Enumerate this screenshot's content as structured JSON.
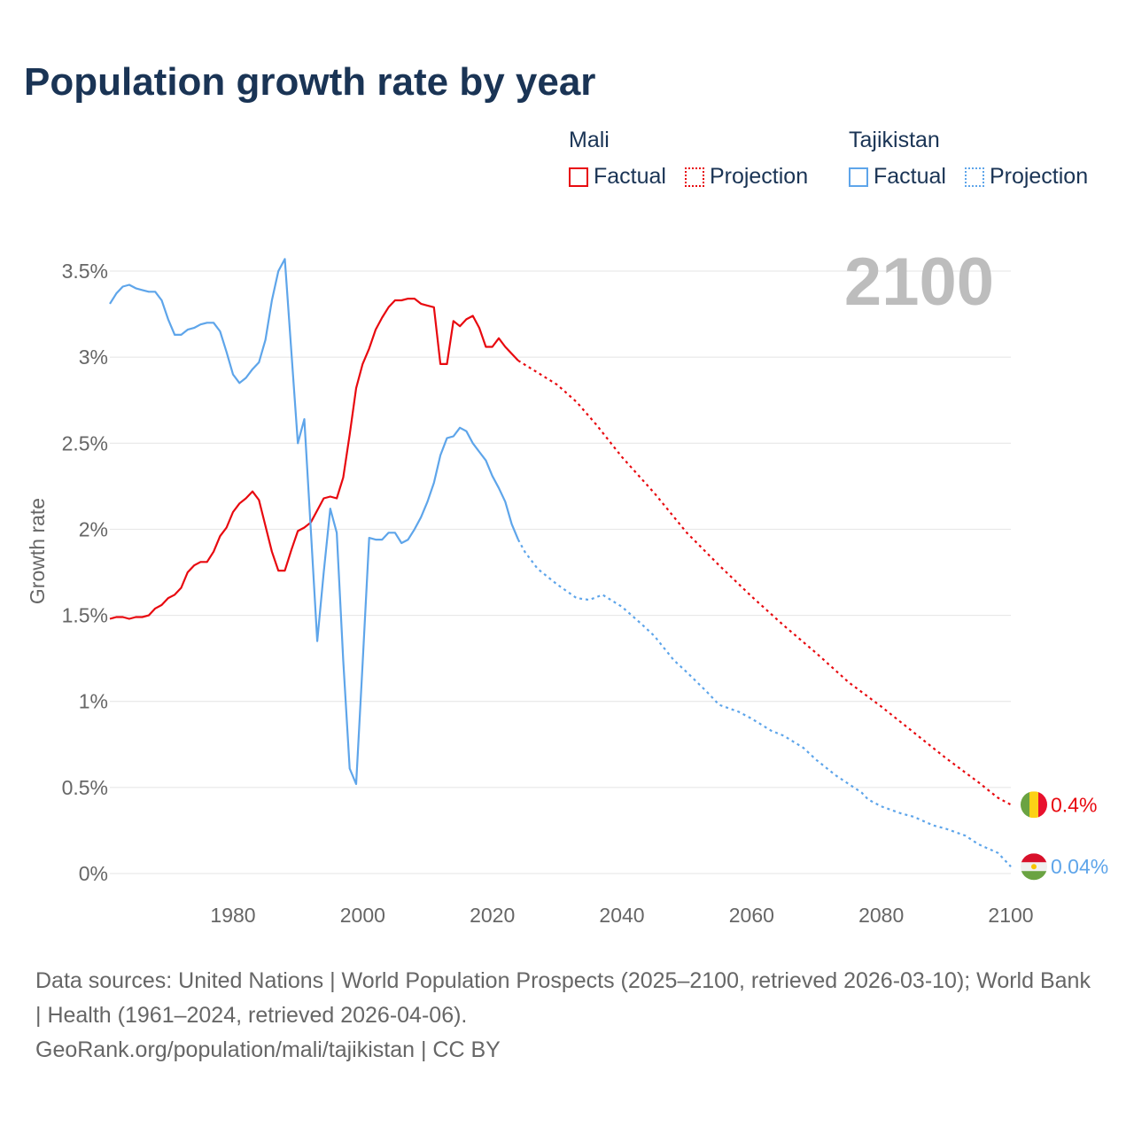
{
  "title": "Population growth rate by year",
  "current_year": "2100",
  "legend": {
    "groups": [
      {
        "name": "Mali",
        "color": "#e8090f",
        "factual": "Factual",
        "projection": "Projection"
      },
      {
        "name": "Tajikistan",
        "color": "#5ea5ea",
        "factual": "Factual",
        "projection": "Projection"
      }
    ]
  },
  "end_labels": {
    "mali": "0.4%",
    "tajikistan": "0.04%"
  },
  "footer": {
    "sources": "Data sources: United Nations | World Population Prospects (2025–2100, retrieved 2026-03-10); World Bank | Health (1961–2024, retrieved 2026-04-06).",
    "credit": "GeoRank.org/population/mali/tajikistan | CC BY"
  },
  "chart_data": {
    "type": "line",
    "title": "Population growth rate by year",
    "xlabel": "",
    "ylabel": "Growth rate",
    "xlim": [
      1961,
      2100
    ],
    "ylim": [
      0,
      3.5
    ],
    "x_ticks": [
      1980,
      2000,
      2020,
      2040,
      2060,
      2080,
      2100
    ],
    "x_tick_labels": [
      "1980",
      "2000",
      "2020",
      "2040",
      "2060",
      "2080",
      "2100"
    ],
    "y_ticks": [
      0,
      0.5,
      1,
      1.5,
      2,
      2.5,
      3,
      3.5
    ],
    "y_tick_labels": [
      "0%",
      "0.5%",
      "1%",
      "1.5%",
      "2%",
      "2.5%",
      "3%",
      "3.5%"
    ],
    "grid": true,
    "legend_position": "top-right",
    "series": [
      {
        "name": "Mali Factual",
        "style": "solid",
        "color": "#e8090f",
        "x": [
          1961,
          1962,
          1963,
          1964,
          1965,
          1966,
          1967,
          1968,
          1969,
          1970,
          1971,
          1972,
          1973,
          1974,
          1975,
          1976,
          1977,
          1978,
          1979,
          1980,
          1981,
          1982,
          1983,
          1984,
          1985,
          1986,
          1987,
          1988,
          1989,
          1990,
          1991,
          1992,
          1993,
          1994,
          1995,
          1996,
          1997,
          1998,
          1999,
          2000,
          2001,
          2002,
          2003,
          2004,
          2005,
          2006,
          2007,
          2008,
          2009,
          2010,
          2011,
          2012,
          2013,
          2014,
          2015,
          2016,
          2017,
          2018,
          2019,
          2020,
          2021,
          2022,
          2023,
          2024
        ],
        "y": [
          1.48,
          1.49,
          1.49,
          1.48,
          1.49,
          1.49,
          1.5,
          1.54,
          1.56,
          1.6,
          1.62,
          1.66,
          1.75,
          1.79,
          1.81,
          1.81,
          1.87,
          1.96,
          2.01,
          2.1,
          2.15,
          2.18,
          2.22,
          2.17,
          2.02,
          1.87,
          1.76,
          1.76,
          1.88,
          1.99,
          2.01,
          2.04,
          2.11,
          2.18,
          2.19,
          2.18,
          2.3,
          2.55,
          2.82,
          2.96,
          3.05,
          3.16,
          3.23,
          3.29,
          3.33,
          3.33,
          3.34,
          3.34,
          3.31,
          3.3,
          3.29,
          2.96,
          2.96,
          3.21,
          3.18,
          3.22,
          3.24,
          3.17,
          3.06,
          3.06,
          3.11,
          3.06,
          3.02,
          2.98
        ]
      },
      {
        "name": "Mali Projection",
        "style": "dotted",
        "color": "#e8090f",
        "x": [
          2024,
          2027,
          2030,
          2033,
          2036,
          2040,
          2045,
          2050,
          2055,
          2060,
          2065,
          2070,
          2075,
          2080,
          2085,
          2090,
          2095,
          2098,
          2100
        ],
        "y": [
          2.98,
          2.91,
          2.84,
          2.74,
          2.61,
          2.42,
          2.21,
          1.98,
          1.79,
          1.61,
          1.44,
          1.28,
          1.11,
          0.97,
          0.82,
          0.67,
          0.53,
          0.44,
          0.4
        ]
      },
      {
        "name": "Tajikistan Factual",
        "style": "solid",
        "color": "#5ea5ea",
        "x": [
          1961,
          1962,
          1963,
          1964,
          1965,
          1966,
          1967,
          1968,
          1969,
          1970,
          1971,
          1972,
          1973,
          1974,
          1975,
          1976,
          1977,
          1978,
          1979,
          1980,
          1981,
          1982,
          1983,
          1984,
          1985,
          1986,
          1987,
          1988,
          1989,
          1990,
          1991,
          1992,
          1993,
          1994,
          1995,
          1996,
          1997,
          1998,
          1999,
          2000,
          2001,
          2002,
          2003,
          2004,
          2005,
          2006,
          2007,
          2008,
          2009,
          2010,
          2011,
          2012,
          2013,
          2014,
          2015,
          2016,
          2017,
          2018,
          2019,
          2020,
          2021,
          2022,
          2023,
          2024
        ],
        "y": [
          3.31,
          3.37,
          3.41,
          3.42,
          3.4,
          3.39,
          3.38,
          3.38,
          3.33,
          3.22,
          3.13,
          3.13,
          3.16,
          3.17,
          3.19,
          3.2,
          3.2,
          3.15,
          3.03,
          2.9,
          2.85,
          2.88,
          2.93,
          2.97,
          3.1,
          3.33,
          3.5,
          3.57,
          3.03,
          2.5,
          2.64,
          2.0,
          1.35,
          1.75,
          2.12,
          1.98,
          1.24,
          0.61,
          0.52,
          1.22,
          1.95,
          1.94,
          1.94,
          1.98,
          1.98,
          1.92,
          1.94,
          2.0,
          2.07,
          2.16,
          2.27,
          2.43,
          2.53,
          2.54,
          2.59,
          2.57,
          2.5,
          2.45,
          2.4,
          2.31,
          2.24,
          2.16,
          2.03,
          1.94
        ]
      },
      {
        "name": "Tajikistan Projection",
        "style": "dotted",
        "color": "#5ea5ea",
        "x": [
          2024,
          2025,
          2027,
          2030,
          2033,
          2035,
          2037,
          2040,
          2043,
          2045,
          2048,
          2050,
          2053,
          2055,
          2058,
          2060,
          2063,
          2065,
          2068,
          2070,
          2073,
          2075,
          2077,
          2078,
          2080,
          2083,
          2085,
          2088,
          2090,
          2093,
          2095,
          2098,
          2100
        ],
        "y": [
          1.94,
          1.87,
          1.77,
          1.68,
          1.6,
          1.59,
          1.62,
          1.55,
          1.45,
          1.38,
          1.24,
          1.17,
          1.06,
          0.98,
          0.94,
          0.9,
          0.83,
          0.8,
          0.73,
          0.66,
          0.57,
          0.52,
          0.47,
          0.43,
          0.39,
          0.35,
          0.33,
          0.28,
          0.26,
          0.22,
          0.17,
          0.12,
          0.04
        ]
      }
    ]
  }
}
